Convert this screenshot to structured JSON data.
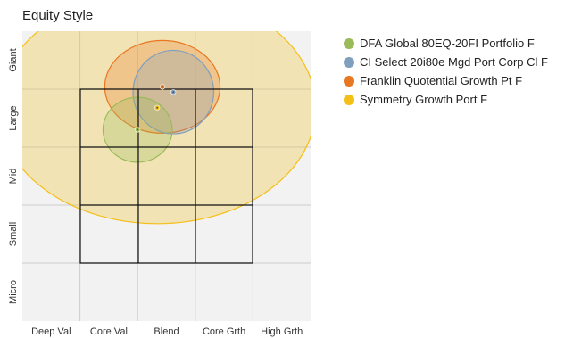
{
  "chart_data": {
    "type": "scatter",
    "title": "Equity Style",
    "x_categories": [
      "Deep Val",
      "Core Val",
      "Blend",
      "Core Grth",
      "High Grth"
    ],
    "y_categories": [
      "Giant",
      "Large",
      "Mid",
      "Small",
      "Micro"
    ],
    "xlim": [
      -1,
      4
    ],
    "ylim": [
      -1,
      4
    ],
    "grid": true,
    "legend_position": "right",
    "series": [
      {
        "name": "DFA Global 80EQ-20FI Portfolio F",
        "color": "#9bbb59",
        "x": 1.0,
        "y": 2.3,
        "spread_x": 0.6,
        "spread_y": 0.56
      },
      {
        "name": "CI Select 20i80e Mgd Port Corp Cl F",
        "color": "#7f9fbf",
        "x": 1.62,
        "y": 2.95,
        "spread_x": 0.7,
        "spread_y": 0.72
      },
      {
        "name": "Franklin Quotential Growth Pt F",
        "color": "#e87722",
        "x": 1.43,
        "y": 3.04,
        "spread_x": 1.0,
        "spread_y": 0.8
      },
      {
        "name": "Symmetry Growth Port F",
        "color": "#f5bf1a",
        "x": 1.34,
        "y": 2.68,
        "spread_x": 2.75,
        "spread_y": 2.0
      }
    ]
  }
}
